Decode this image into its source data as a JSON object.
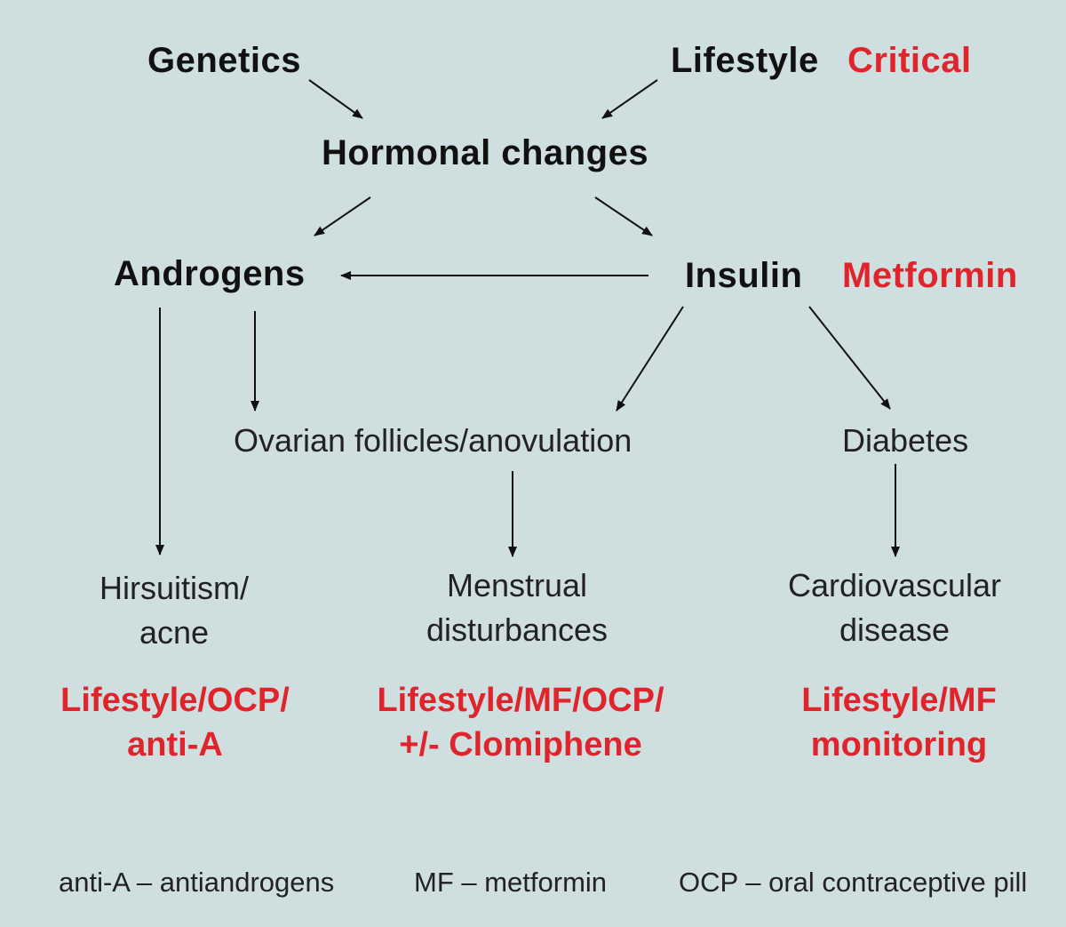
{
  "colors": {
    "background": "#cfdfe0",
    "primary_text": "#111111",
    "accent_red": "#e0242b"
  },
  "nodes": {
    "genetics": "Genetics",
    "lifestyle": "Lifestyle",
    "critical": "Critical",
    "hormonal_changes": "Hormonal changes",
    "androgens": "Androgens",
    "insulin": "Insulin",
    "metformin": "Metformin",
    "ovarian": "Ovarian follicles/anovulation",
    "diabetes": "Diabetes",
    "hirsuitism": [
      "Hirsuitism/",
      "acne"
    ],
    "menstrual": [
      "Menstrual",
      "disturbances"
    ],
    "cardiovascular": [
      "Cardiovascular",
      "disease"
    ]
  },
  "treatments": {
    "hirsuitism": [
      "Lifestyle/OCP/",
      "anti-A"
    ],
    "menstrual": [
      "Lifestyle/MF/OCP/",
      "+/- Clomiphene"
    ],
    "cardiovascular": [
      "Lifestyle/MF",
      "monitoring"
    ]
  },
  "legend": {
    "anti_a": "anti-A – antiandrogens",
    "mf": "MF – metformin",
    "ocp": "OCP – oral contraceptive pill"
  }
}
